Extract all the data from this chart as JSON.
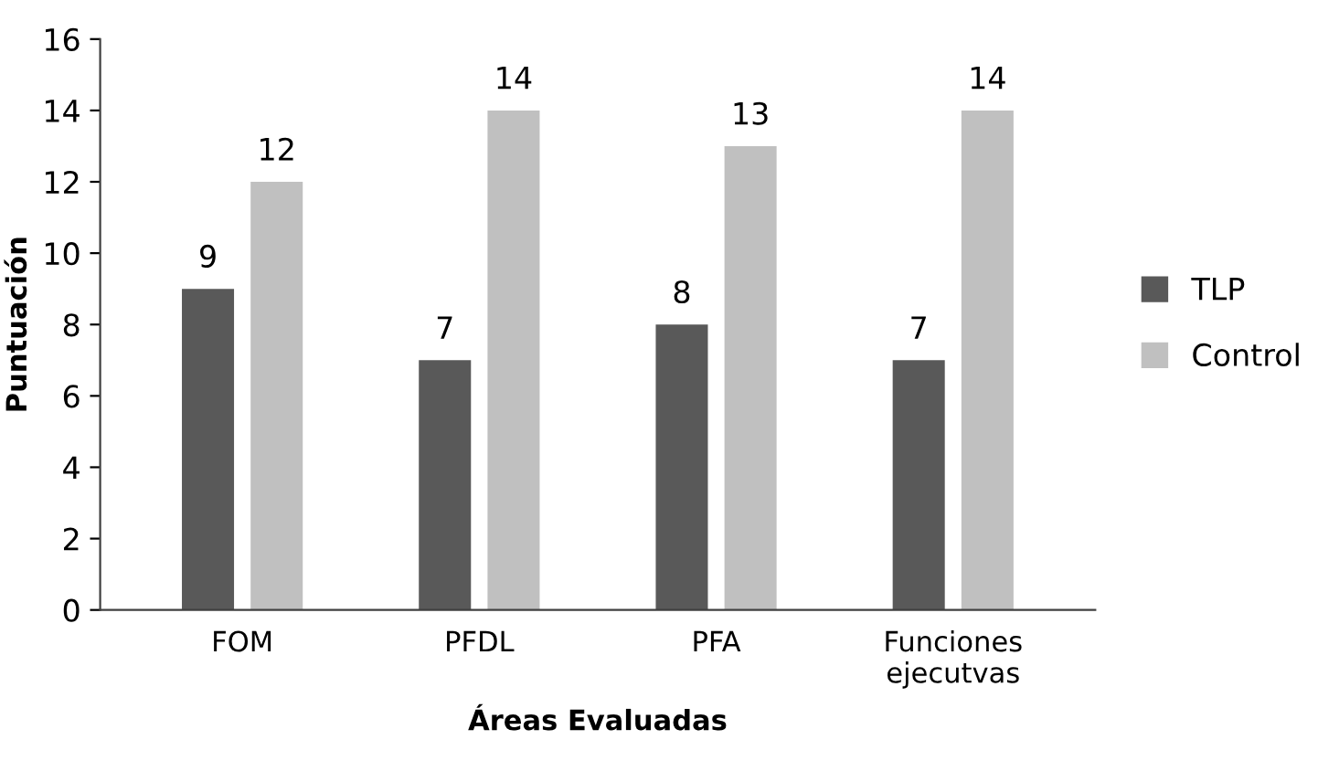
{
  "chart_data": {
    "type": "bar",
    "xlabel": "Áreas Evaluadas",
    "ylabel": "Puntuación",
    "categories": [
      "FOM",
      "PFDL",
      "PFA",
      "Funciones\nejecutvas"
    ],
    "series": [
      {
        "name": "TLP",
        "color": "#595959",
        "values": [
          9,
          7,
          8,
          7
        ]
      },
      {
        "name": "Control",
        "color": "#c0c0c0",
        "values": [
          12,
          14,
          13,
          14
        ]
      }
    ],
    "ylim": [
      0,
      16
    ],
    "yticks": [
      0,
      2,
      4,
      6,
      8,
      10,
      12,
      14,
      16
    ],
    "data_labels": true,
    "legend": "right",
    "grid": false
  }
}
